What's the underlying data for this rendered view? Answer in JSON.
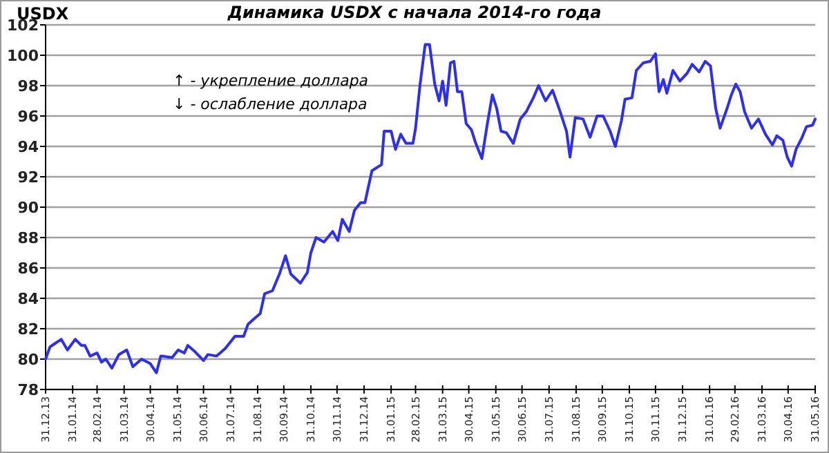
{
  "chart_data": {
    "type": "line",
    "title": "Динамика USDX с начала 2014-го года",
    "ylabel": "USDX",
    "annotations": [
      "↑ - укрепление доллара",
      "↓ - ослабление доллара"
    ],
    "grid": "y",
    "marker": "none",
    "line_style": "solid",
    "xlim": [
      "2013-12-31",
      "2016-05-31"
    ],
    "ylim": [
      78,
      102
    ],
    "yticks": [
      78,
      80,
      82,
      84,
      86,
      88,
      90,
      92,
      94,
      96,
      98,
      100,
      102
    ],
    "xticks": [
      {
        "value": "2013-12-31",
        "label": "31.12.13"
      },
      {
        "value": "2014-01-31",
        "label": "31.01.14"
      },
      {
        "value": "2014-02-28",
        "label": "28.02.14"
      },
      {
        "value": "2014-03-31",
        "label": "31.03.14"
      },
      {
        "value": "2014-04-30",
        "label": "30.04.14"
      },
      {
        "value": "2014-05-31",
        "label": "31.05.14"
      },
      {
        "value": "2014-06-30",
        "label": "30.06.14"
      },
      {
        "value": "2014-07-31",
        "label": "31.07.14"
      },
      {
        "value": "2014-08-31",
        "label": "31.08.14"
      },
      {
        "value": "2014-09-30",
        "label": "30.09.14"
      },
      {
        "value": "2014-10-31",
        "label": "31.10.14"
      },
      {
        "value": "2014-11-30",
        "label": "30.11.14"
      },
      {
        "value": "2014-12-31",
        "label": "31.12.14"
      },
      {
        "value": "2015-01-31",
        "label": "31.01.15"
      },
      {
        "value": "2015-02-28",
        "label": "28.02.15"
      },
      {
        "value": "2015-03-31",
        "label": "31.03.15"
      },
      {
        "value": "2015-04-30",
        "label": "30.04.15"
      },
      {
        "value": "2015-05-31",
        "label": "31.05.15"
      },
      {
        "value": "2015-06-30",
        "label": "30.06.15"
      },
      {
        "value": "2015-07-31",
        "label": "31.07.15"
      },
      {
        "value": "2015-08-31",
        "label": "31.08.15"
      },
      {
        "value": "2015-09-30",
        "label": "30.09.15"
      },
      {
        "value": "2015-10-31",
        "label": "31.10.15"
      },
      {
        "value": "2015-11-30",
        "label": "30.11.15"
      },
      {
        "value": "2015-12-31",
        "label": "31.12.15"
      },
      {
        "value": "2016-01-31",
        "label": "31.01.16"
      },
      {
        "value": "2016-02-29",
        "label": "29.02.16"
      },
      {
        "value": "2016-03-31",
        "label": "31.03.16"
      },
      {
        "value": "2016-04-30",
        "label": "30.04.16"
      },
      {
        "value": "2016-05-31",
        "label": "31.05.16"
      }
    ],
    "series": [
      {
        "color": "#2e2ef0",
        "x": [
          "2013-12-31",
          "2014-01-05",
          "2014-01-10",
          "2014-01-18",
          "2014-01-25",
          "2014-02-03",
          "2014-02-10",
          "2014-02-14",
          "2014-02-20",
          "2014-02-28",
          "2014-03-05",
          "2014-03-10",
          "2014-03-17",
          "2014-03-25",
          "2014-04-03",
          "2014-04-10",
          "2014-04-20",
          "2014-04-30",
          "2014-05-07",
          "2014-05-12",
          "2014-05-25",
          "2014-06-01",
          "2014-06-08",
          "2014-06-12",
          "2014-06-20",
          "2014-06-30",
          "2014-07-05",
          "2014-07-15",
          "2014-07-25",
          "2014-08-05",
          "2014-08-15",
          "2014-08-20",
          "2014-08-28",
          "2014-09-03",
          "2014-09-08",
          "2014-09-17",
          "2014-09-25",
          "2014-10-02",
          "2014-10-08",
          "2014-10-19",
          "2014-10-27",
          "2014-10-31",
          "2014-11-06",
          "2014-11-15",
          "2014-11-25",
          "2014-12-01",
          "2014-12-06",
          "2014-12-14",
          "2014-12-20",
          "2014-12-27",
          "2015-01-01",
          "2015-01-09",
          "2015-01-20",
          "2015-01-23",
          "2015-01-31",
          "2015-02-05",
          "2015-02-11",
          "2015-02-17",
          "2015-02-25",
          "2015-02-28",
          "2015-03-05",
          "2015-03-11",
          "2015-03-16",
          "2015-03-22",
          "2015-03-27",
          "2015-03-31",
          "2015-04-04",
          "2015-04-09",
          "2015-04-13",
          "2015-04-17",
          "2015-04-22",
          "2015-04-27",
          "2015-05-03",
          "2015-05-08",
          "2015-05-15",
          "2015-05-21",
          "2015-05-27",
          "2015-06-01",
          "2015-06-06",
          "2015-06-12",
          "2015-06-20",
          "2015-06-28",
          "2015-07-05",
          "2015-07-13",
          "2015-07-19",
          "2015-07-27",
          "2015-08-04",
          "2015-08-12",
          "2015-08-20",
          "2015-08-24",
          "2015-08-30",
          "2015-09-08",
          "2015-09-16",
          "2015-09-24",
          "2015-10-01",
          "2015-10-09",
          "2015-10-15",
          "2015-10-22",
          "2015-10-26",
          "2015-11-03",
          "2015-11-08",
          "2015-11-16",
          "2015-11-24",
          "2015-11-30",
          "2015-12-04",
          "2015-12-09",
          "2015-12-13",
          "2015-12-20",
          "2015-12-28",
          "2016-01-05",
          "2016-01-11",
          "2016-01-19",
          "2016-01-26",
          "2016-02-01",
          "2016-02-07",
          "2016-02-12",
          "2016-02-20",
          "2016-02-25",
          "2016-03-01",
          "2016-03-06",
          "2016-03-11",
          "2016-03-19",
          "2016-03-27",
          "2016-04-04",
          "2016-04-12",
          "2016-04-17",
          "2016-04-24",
          "2016-04-29",
          "2016-05-04",
          "2016-05-09",
          "2016-05-16",
          "2016-05-21",
          "2016-05-28",
          "2016-05-31"
        ],
        "values": [
          80.0,
          80.8,
          81.0,
          81.3,
          80.6,
          81.3,
          80.9,
          80.9,
          80.2,
          80.4,
          79.8,
          80.0,
          79.4,
          80.3,
          80.6,
          79.5,
          80.0,
          79.7,
          79.1,
          80.2,
          80.1,
          80.6,
          80.4,
          80.9,
          80.5,
          79.9,
          80.3,
          80.2,
          80.7,
          81.5,
          81.5,
          82.3,
          82.7,
          83.0,
          84.3,
          84.5,
          85.6,
          86.8,
          85.6,
          85.0,
          85.7,
          87.0,
          88.0,
          87.7,
          88.4,
          87.8,
          89.2,
          88.4,
          89.8,
          90.3,
          90.3,
          92.4,
          92.8,
          95.0,
          95.0,
          93.8,
          94.8,
          94.2,
          94.2,
          95.2,
          98.0,
          100.7,
          100.7,
          98.1,
          97.0,
          98.3,
          96.7,
          99.5,
          99.6,
          97.6,
          97.6,
          95.5,
          95.1,
          94.2,
          93.2,
          95.4,
          97.4,
          96.5,
          95.0,
          94.9,
          94.2,
          95.8,
          96.3,
          97.2,
          98.0,
          97.0,
          97.7,
          96.4,
          95.0,
          93.3,
          95.9,
          95.8,
          94.6,
          96.0,
          96.0,
          95.0,
          94.0,
          95.7,
          97.1,
          97.2,
          99.0,
          99.5,
          99.6,
          100.1,
          97.6,
          98.4,
          97.5,
          99.0,
          98.3,
          98.8,
          99.4,
          98.9,
          99.6,
          99.3,
          96.5,
          95.2,
          96.5,
          97.4,
          98.1,
          97.6,
          96.3,
          95.2,
          95.8,
          94.8,
          94.1,
          94.7,
          94.4,
          93.3,
          92.7,
          93.8,
          94.6,
          95.3,
          95.4,
          95.8
        ]
      }
    ]
  }
}
